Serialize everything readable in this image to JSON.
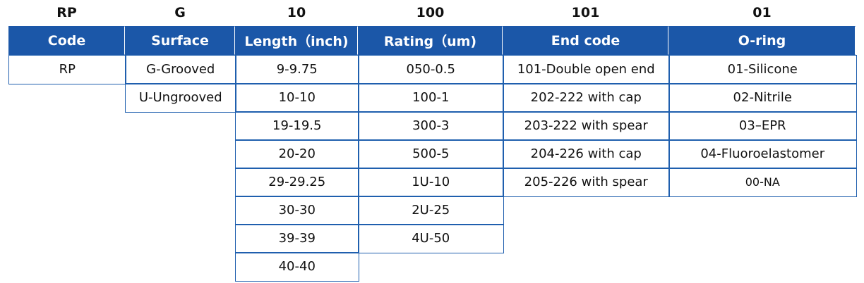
{
  "columns": [
    {
      "code": "RP",
      "header": "Code",
      "items": [
        "RP"
      ]
    },
    {
      "code": "G",
      "header": "Surface",
      "items": [
        "G-Grooved",
        "U-Ungrooved"
      ]
    },
    {
      "code": "10",
      "header": "Length（inch)",
      "items": [
        "9-9.75",
        "10-10",
        "19-19.5",
        "20-20",
        "29-29.25",
        "30-30",
        "39-39",
        "40-40"
      ]
    },
    {
      "code": "100",
      "header": "Rating（um)",
      "items": [
        "050-0.5",
        "100-1",
        "300-3",
        "500-5",
        "1U-10",
        "2U-25",
        "4U-50"
      ]
    },
    {
      "code": "101",
      "header": "End code",
      "items": [
        "101-Double open end",
        "202-222 with cap",
        "203-222 with spear",
        "204-226 with cap",
        "205-226 with spear"
      ]
    },
    {
      "code": "01",
      "header": "O-ring",
      "items": [
        "01-Silicone",
        "02-Nitrile",
        "03–EPR",
        "04-Fluoroelastomer",
        "00-NA"
      ]
    }
  ]
}
